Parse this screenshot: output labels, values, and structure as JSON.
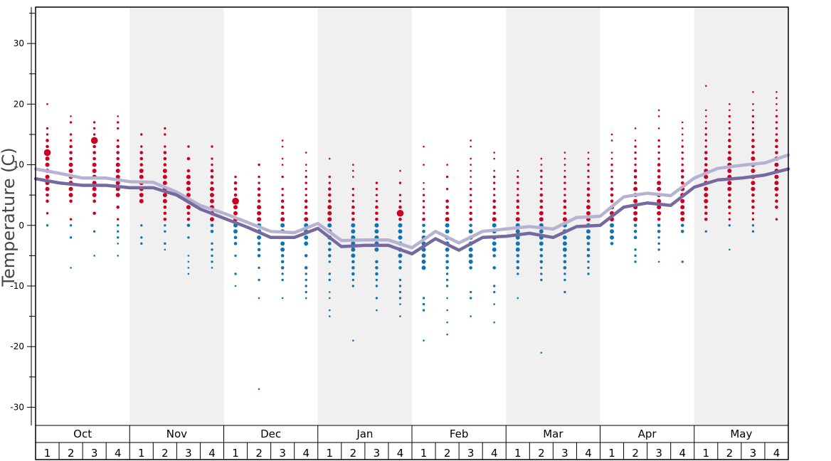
{
  "chart_data": {
    "type": "scatter",
    "title": "",
    "xlabel": "",
    "ylabel": "Temperature (C)",
    "ylim": [
      -33,
      36
    ],
    "yticks": [
      -30,
      -20,
      -10,
      0,
      10,
      20,
      30
    ],
    "grid": false,
    "months": [
      "Oct",
      "Nov",
      "Dec",
      "Jan",
      "Feb",
      "Mar",
      "Apr",
      "May"
    ],
    "weeks": [
      "1",
      "2",
      "3",
      "4"
    ],
    "colors": {
      "warm": "#cc0022",
      "cold": "#0f74b3",
      "max_line": "#b8b2d2",
      "min_line": "#77699f",
      "shade": "#f0f0f0"
    },
    "series": [
      {
        "name": "",
        "color": "#b8b2d2",
        "values": [
          9.3,
          8.6,
          7.8,
          7.8,
          7.2,
          7.1,
          5.5,
          3.3,
          2,
          0.5,
          -1,
          -1.2,
          0.3,
          -2.5,
          -2.4,
          -2.4,
          -3.7,
          -1,
          -2.9,
          -1,
          -0.6,
          -0.2,
          -0.6,
          1.3,
          1.5,
          4.7,
          5.3,
          4.9,
          7.8,
          9.4,
          9.9,
          10.3,
          11.6
        ]
      },
      {
        "name": "",
        "color": "#77699f",
        "values": [
          7.7,
          7,
          6.6,
          6.6,
          6.2,
          6.2,
          5,
          2.7,
          1.2,
          -0.3,
          -2,
          -2,
          -0.5,
          -3.5,
          -3.3,
          -3.3,
          -4.7,
          -2.2,
          -4.1,
          -2,
          -1.8,
          -1.3,
          -2,
          -0.2,
          0,
          3,
          3.7,
          3.3,
          6.3,
          7.5,
          7.8,
          8.3,
          9.3
        ]
      },
      {
        "name": "",
        "type": "observations",
        "points": [
          {
            "w": 0,
            "t": [
              20,
              16,
              15,
              14,
              13,
              12,
              12,
              11,
              10,
              9,
              8,
              7,
              6,
              5,
              4,
              2,
              0
            ]
          },
          {
            "w": 1,
            "t": [
              18,
              17,
              15,
              14,
              13,
              12,
              11,
              10,
              9,
              8,
              7,
              6,
              5,
              4,
              1,
              0,
              -2,
              -7
            ]
          },
          {
            "w": 2,
            "t": [
              17,
              16,
              15,
              14,
              14,
              13,
              12,
              11,
              10,
              9,
              8,
              7,
              6,
              5,
              4,
              2,
              -1,
              -5
            ]
          },
          {
            "w": 3,
            "t": [
              18,
              17,
              16,
              14,
              13,
              12,
              11,
              10,
              9,
              8,
              7,
              6,
              5,
              3,
              1,
              0,
              -1,
              -2,
              -3,
              -5
            ]
          },
          {
            "w": 4,
            "t": [
              15,
              13,
              12,
              11,
              10,
              9,
              8,
              7,
              6,
              5,
              4,
              0,
              -2,
              -3
            ]
          },
          {
            "w": 5,
            "t": [
              16,
              15,
              13,
              12,
              11,
              10,
              9,
              8,
              7,
              6,
              5,
              4,
              3,
              2,
              1,
              0,
              -1,
              -3,
              -4
            ]
          },
          {
            "w": 6,
            "t": [
              13,
              11,
              9,
              8,
              7,
              6,
              5,
              4,
              3,
              2,
              1,
              0,
              -2,
              -5,
              -6,
              -7,
              -8
            ]
          },
          {
            "w": 7,
            "t": [
              13,
              11,
              10,
              9,
              8,
              7,
              6,
              5,
              4,
              3,
              2,
              1,
              0,
              -1,
              -3,
              -4,
              -5,
              -6,
              -7
            ]
          },
          {
            "w": 8,
            "t": [
              8,
              7,
              6,
              5,
              4,
              4,
              3,
              2,
              1,
              0,
              -1,
              -2,
              -3,
              -5,
              -8,
              -10
            ]
          },
          {
            "w": 9,
            "t": [
              10,
              8,
              7,
              6,
              5,
              4,
              3,
              2,
              1,
              0,
              -1,
              -2,
              -3,
              -4,
              -5,
              -7,
              -9,
              -12,
              -27
            ]
          },
          {
            "w": 10,
            "t": [
              14,
              13,
              11,
              10,
              8,
              6,
              5,
              4,
              3,
              2,
              1,
              0,
              -1,
              -3,
              -4,
              -5,
              -6,
              -7,
              -8,
              -9,
              -12
            ]
          },
          {
            "w": 11,
            "t": [
              12,
              10,
              9,
              8,
              7,
              6,
              5,
              4,
              3,
              2,
              1,
              0,
              -1,
              -2,
              -3,
              -5,
              -7,
              -8,
              -9,
              -10,
              -11,
              -12
            ]
          },
          {
            "w": 12,
            "t": [
              11,
              8,
              7,
              6,
              5,
              4,
              3,
              2,
              1,
              0,
              -1,
              -2,
              -3,
              -4,
              -5,
              -6,
              -8,
              -9,
              -11,
              -12,
              -14,
              -15
            ]
          },
          {
            "w": 13,
            "t": [
              10,
              9,
              8,
              6,
              5,
              4,
              3,
              2,
              1,
              0,
              -1,
              -2,
              -3,
              -4,
              -5,
              -6,
              -7,
              -8,
              -9,
              -10,
              -19
            ]
          },
          {
            "w": 14,
            "t": [
              7,
              6,
              5,
              4,
              3,
              2,
              1,
              0,
              -1,
              -2,
              -3,
              -4,
              -6,
              -7,
              -8,
              -9,
              -10,
              -12,
              -14
            ]
          },
          {
            "w": 15,
            "t": [
              9,
              7,
              5,
              4,
              3,
              2,
              2,
              1,
              0,
              -1,
              -2,
              -3,
              -4,
              -5,
              -6,
              -7,
              -9,
              -10,
              -11,
              -12,
              -13,
              -15
            ]
          },
          {
            "w": 16,
            "t": [
              13,
              10,
              7,
              6,
              5,
              4,
              3,
              2,
              1,
              0,
              -1,
              -2,
              -3,
              -4,
              -5,
              -6,
              -7,
              -12,
              -13,
              -14,
              -19
            ]
          },
          {
            "w": 17,
            "t": [
              10,
              8,
              6,
              4,
              3,
              2,
              1,
              0,
              -1,
              -2,
              -3,
              -4,
              -5,
              -6,
              -7,
              -8,
              -9,
              -10,
              -12,
              -14,
              -16,
              -18
            ]
          },
          {
            "w": 18,
            "t": [
              14,
              13,
              11,
              10,
              9,
              8,
              7,
              6,
              5,
              4,
              3,
              2,
              1,
              0,
              -1,
              -2,
              -3,
              -4,
              -5,
              -6,
              -7,
              -11,
              -12,
              -15
            ]
          },
          {
            "w": 19,
            "t": [
              12,
              11,
              9,
              8,
              7,
              6,
              5,
              4,
              3,
              2,
              1,
              0,
              -1,
              -2,
              -3,
              -4,
              -5,
              -7,
              -10,
              -11,
              -13,
              -16
            ]
          },
          {
            "w": 20,
            "t": [
              9,
              8,
              7,
              6,
              5,
              4,
              3,
              2,
              1,
              0,
              -1,
              -2,
              -3,
              -4,
              -5,
              -6,
              -7,
              -8,
              -12
            ]
          },
          {
            "w": 21,
            "t": [
              11,
              10,
              9,
              8,
              7,
              6,
              5,
              4,
              3,
              2,
              1,
              0,
              -1,
              -2,
              -3,
              -4,
              -5,
              -6,
              -7,
              -8,
              -9,
              -21
            ]
          },
          {
            "w": 22,
            "t": [
              12,
              11,
              10,
              9,
              8,
              7,
              6,
              5,
              4,
              3,
              2,
              1,
              0,
              -1,
              -2,
              -3,
              -4,
              -5,
              -6,
              -7,
              -8,
              -9,
              -11
            ]
          },
          {
            "w": 23,
            "t": [
              12,
              11,
              10,
              9,
              8,
              7,
              6,
              5,
              4,
              3,
              2,
              1,
              0,
              -1,
              -2,
              -3,
              -4,
              -5,
              -6,
              -7,
              -8
            ]
          },
          {
            "w": 24,
            "t": [
              15,
              14,
              12,
              11,
              10,
              9,
              8,
              7,
              6,
              5,
              4,
              3,
              2,
              1,
              0,
              -1,
              -2,
              -3
            ]
          },
          {
            "w": 25,
            "t": [
              16,
              14,
              13,
              12,
              11,
              10,
              9,
              8,
              7,
              6,
              5,
              4,
              3,
              2,
              1,
              0,
              -1,
              -2,
              -4,
              -5,
              -6
            ]
          },
          {
            "w": 26,
            "t": [
              19,
              18,
              16,
              14,
              13,
              12,
              11,
              10,
              9,
              8,
              7,
              6,
              5,
              4,
              3,
              2,
              1,
              0,
              -1,
              -2,
              -3,
              -4,
              -6
            ]
          },
          {
            "w": 27,
            "t": [
              17,
              16,
              15,
              14,
              13,
              12,
              11,
              10,
              9,
              8,
              7,
              6,
              5,
              4,
              3,
              2,
              1,
              0,
              -1,
              -6
            ]
          },
          {
            "w": 28,
            "t": [
              23,
              19,
              18,
              17,
              16,
              15,
              14,
              13,
              12,
              11,
              10,
              9,
              8,
              7,
              6,
              5,
              4,
              3,
              2,
              1,
              -1
            ]
          },
          {
            "w": 29,
            "t": [
              20,
              19,
              18,
              17,
              16,
              15,
              14,
              13,
              12,
              11,
              10,
              9,
              8,
              7,
              6,
              5,
              4,
              3,
              2,
              1,
              0,
              -4
            ]
          },
          {
            "w": 30,
            "t": [
              22,
              20,
              19,
              18,
              17,
              16,
              15,
              14,
              13,
              12,
              11,
              10,
              9,
              8,
              7,
              6,
              5,
              4,
              3,
              2,
              1,
              0,
              -1
            ]
          },
          {
            "w": 31,
            "t": [
              22,
              21,
              20,
              19,
              18,
              17,
              16,
              15,
              14,
              13,
              12,
              11,
              10,
              9,
              8,
              7,
              6,
              5,
              4,
              3,
              1
            ]
          }
        ]
      }
    ]
  }
}
